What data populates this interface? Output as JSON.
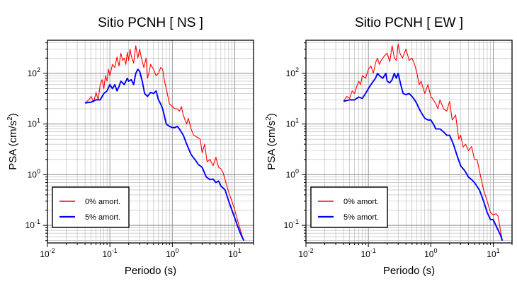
{
  "chart_data": [
    {
      "type": "line",
      "title": "Sitio PCNH [ NS ]",
      "xlabel": "Periodo (s)",
      "ylabel_base": "PSA (cm/s",
      "ylabel_sup": "2",
      "ylabel_tail": ")",
      "xscale": "log",
      "yscale": "log",
      "xlim": [
        0.01,
        20
      ],
      "ylim": [
        0.045,
        450
      ],
      "grid": true,
      "legend_position": "bottom-left",
      "x_tick_labels": [
        {
          "value": 0.01,
          "base": "10",
          "exp": "-2"
        },
        {
          "value": 0.1,
          "base": "10",
          "exp": "-1"
        },
        {
          "value": 1,
          "base": "10",
          "exp": "0"
        },
        {
          "value": 10,
          "base": "10",
          "exp": "1"
        }
      ],
      "y_tick_labels": [
        {
          "value": 0.1,
          "base": "10",
          "exp": "-1"
        },
        {
          "value": 1,
          "base": "10",
          "exp": "0"
        },
        {
          "value": 10,
          "base": "10",
          "exp": "1"
        },
        {
          "value": 100,
          "base": "10",
          "exp": "2"
        }
      ],
      "series": [
        {
          "name": "0% amort.",
          "color": "#ff0000",
          "x": [
            0.04,
            0.046,
            0.05,
            0.055,
            0.06,
            0.065,
            0.07,
            0.075,
            0.08,
            0.085,
            0.09,
            0.095,
            0.1,
            0.11,
            0.12,
            0.13,
            0.14,
            0.15,
            0.16,
            0.17,
            0.18,
            0.19,
            0.2,
            0.21,
            0.22,
            0.24,
            0.26,
            0.28,
            0.3,
            0.32,
            0.35,
            0.38,
            0.4,
            0.42,
            0.45,
            0.5,
            0.55,
            0.6,
            0.65,
            0.7,
            0.75,
            0.8,
            0.9,
            1.0,
            1.1,
            1.2,
            1.3,
            1.4,
            1.5,
            1.6,
            1.7,
            1.8,
            2.0,
            2.2,
            2.5,
            2.8,
            3.0,
            3.3,
            3.6,
            4.0,
            4.5,
            5.0,
            5.5,
            6.0,
            6.5,
            7.0,
            8.0,
            9.0,
            10.0,
            11.0,
            12.0,
            13.0,
            14.0
          ],
          "y": [
            26,
            30,
            35,
            27,
            42,
            30,
            60,
            75,
            50,
            90,
            70,
            120,
            90,
            150,
            130,
            210,
            140,
            250,
            180,
            200,
            150,
            260,
            180,
            300,
            220,
            160,
            350,
            200,
            300,
            200,
            130,
            200,
            80,
            100,
            150,
            120,
            90,
            100,
            130,
            120,
            70,
            50,
            25,
            22,
            20,
            20,
            18,
            22,
            15,
            12,
            10,
            13,
            8,
            6,
            5.5,
            5,
            2.7,
            4,
            1.8,
            2.0,
            1.5,
            2.2,
            1.4,
            1.3,
            1.1,
            0.8,
            0.45,
            0.3,
            0.2,
            0.13,
            0.09,
            0.065,
            0.05
          ]
        },
        {
          "name": "5% amort.",
          "color": "#0000ff",
          "x": [
            0.04,
            0.05,
            0.06,
            0.07,
            0.08,
            0.09,
            0.1,
            0.11,
            0.12,
            0.13,
            0.14,
            0.15,
            0.17,
            0.19,
            0.2,
            0.22,
            0.24,
            0.26,
            0.28,
            0.3,
            0.33,
            0.36,
            0.4,
            0.45,
            0.5,
            0.55,
            0.6,
            0.65,
            0.7,
            0.8,
            0.9,
            1.0,
            1.1,
            1.2,
            1.3,
            1.5,
            1.7,
            2.0,
            2.3,
            2.6,
            3.0,
            3.5,
            4.0,
            4.5,
            5.0,
            5.5,
            6.0,
            7.0,
            8.0,
            9.0,
            10.0,
            11.0,
            12.0,
            13.0,
            14.0
          ],
          "y": [
            26,
            27,
            30,
            30,
            40,
            45,
            60,
            50,
            60,
            45,
            55,
            70,
            60,
            80,
            70,
            75,
            60,
            100,
            120,
            110,
            70,
            40,
            35,
            42,
            40,
            45,
            30,
            25,
            20,
            10,
            9,
            8.5,
            8.5,
            9,
            8,
            6,
            4,
            2.5,
            2,
            1.6,
            1.4,
            0.9,
            0.8,
            0.82,
            0.7,
            0.75,
            0.6,
            0.5,
            0.3,
            0.2,
            0.14,
            0.1,
            0.075,
            0.06,
            0.05
          ]
        }
      ]
    },
    {
      "type": "line",
      "title": "Sitio PCNH [ EW ]",
      "xlabel": "Periodo (s)",
      "ylabel_base": "PSA (cm/s",
      "ylabel_sup": "2",
      "ylabel_tail": ")",
      "xscale": "log",
      "yscale": "log",
      "xlim": [
        0.01,
        20
      ],
      "ylim": [
        0.045,
        450
      ],
      "grid": true,
      "legend_position": "bottom-left",
      "x_tick_labels": [
        {
          "value": 0.01,
          "base": "10",
          "exp": "-2"
        },
        {
          "value": 0.1,
          "base": "10",
          "exp": "-1"
        },
        {
          "value": 1,
          "base": "10",
          "exp": "0"
        },
        {
          "value": 10,
          "base": "10",
          "exp": "1"
        }
      ],
      "y_tick_labels": [
        {
          "value": 0.1,
          "base": "10",
          "exp": "-1"
        },
        {
          "value": 1,
          "base": "10",
          "exp": "0"
        },
        {
          "value": 10,
          "base": "10",
          "exp": "1"
        },
        {
          "value": 100,
          "base": "10",
          "exp": "2"
        }
      ],
      "series": [
        {
          "name": "0% amort.",
          "color": "#ff0000",
          "x": [
            0.04,
            0.045,
            0.05,
            0.055,
            0.06,
            0.065,
            0.07,
            0.075,
            0.08,
            0.09,
            0.1,
            0.11,
            0.12,
            0.13,
            0.14,
            0.15,
            0.16,
            0.17,
            0.18,
            0.2,
            0.22,
            0.24,
            0.26,
            0.28,
            0.3,
            0.32,
            0.35,
            0.4,
            0.45,
            0.5,
            0.55,
            0.6,
            0.65,
            0.7,
            0.8,
            0.9,
            1.0,
            1.1,
            1.2,
            1.3,
            1.4,
            1.6,
            1.8,
            2.0,
            2.2,
            2.5,
            2.8,
            3.0,
            3.3,
            3.6,
            4.0,
            4.5,
            5.0,
            5.5,
            6.0,
            7.0,
            8.0,
            9.0,
            10.0,
            11.0,
            12.0,
            13.0,
            14.0
          ],
          "y": [
            28,
            35,
            32,
            45,
            40,
            55,
            70,
            60,
            90,
            80,
            120,
            140,
            100,
            160,
            200,
            150,
            180,
            200,
            220,
            250,
            170,
            350,
            200,
            180,
            380,
            250,
            200,
            300,
            180,
            200,
            150,
            100,
            60,
            70,
            40,
            60,
            35,
            30,
            25,
            20,
            30,
            20,
            18,
            28,
            12,
            15,
            5,
            6,
            3.5,
            4,
            3,
            3.6,
            2,
            2,
            1.2,
            0.5,
            0.3,
            0.18,
            0.16,
            0.17,
            0.15,
            0.08,
            0.05
          ]
        },
        {
          "name": "5% amort.",
          "color": "#0000ff",
          "x": [
            0.04,
            0.05,
            0.06,
            0.07,
            0.08,
            0.09,
            0.1,
            0.11,
            0.12,
            0.13,
            0.14,
            0.15,
            0.17,
            0.19,
            0.2,
            0.22,
            0.24,
            0.26,
            0.28,
            0.3,
            0.33,
            0.36,
            0.4,
            0.45,
            0.5,
            0.55,
            0.6,
            0.65,
            0.7,
            0.8,
            0.9,
            1.0,
            1.1,
            1.2,
            1.4,
            1.6,
            1.8,
            2.0,
            2.3,
            2.6,
            3.0,
            3.5,
            4.0,
            4.5,
            5.0,
            6.0,
            7.0,
            8.0,
            9.0,
            10.0,
            11.0,
            12.0,
            13.0,
            14.0
          ],
          "y": [
            28,
            30,
            30,
            34,
            32,
            40,
            50,
            60,
            70,
            80,
            100,
            90,
            80,
            100,
            70,
            65,
            75,
            100,
            80,
            100,
            60,
            40,
            38,
            40,
            35,
            30,
            25,
            20,
            17,
            13,
            12,
            12,
            10,
            8,
            8,
            7,
            6,
            6,
            4,
            2.5,
            1.5,
            1.2,
            0.9,
            0.8,
            0.7,
            0.5,
            0.3,
            0.18,
            0.13,
            0.13,
            0.1,
            0.08,
            0.065,
            0.05
          ]
        }
      ]
    }
  ]
}
